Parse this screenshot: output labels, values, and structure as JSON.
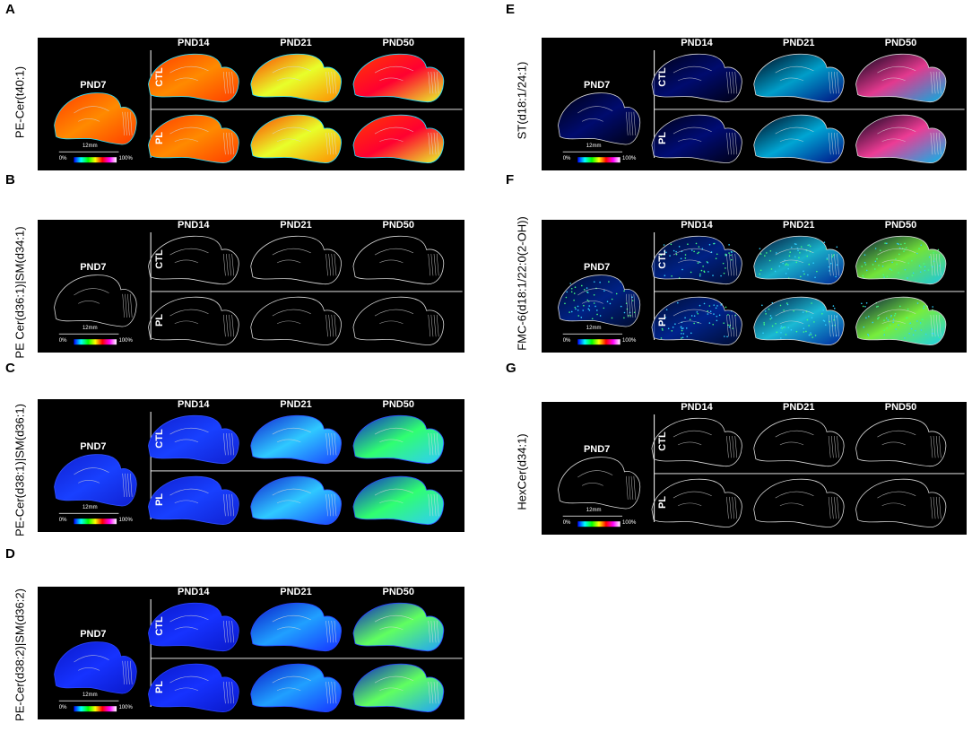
{
  "panels": [
    {
      "letter": "A",
      "ylabel": "PE-Cer(t40:1)",
      "scheme": "hot",
      "pnd7": "PND7",
      "cols": [
        "PND14",
        "PND21",
        "PND50"
      ],
      "rows": [
        "CTL",
        "PL"
      ],
      "scale": "12mm",
      "cb_min": "0%",
      "cb_max": "100%"
    },
    {
      "letter": "B",
      "ylabel": "PE Cer(d36:1)|SM(d34:1)",
      "scheme": "outline",
      "pnd7": "PND7",
      "cols": [
        "PND14",
        "PND21",
        "PND50"
      ],
      "rows": [
        "CTL",
        "PL"
      ],
      "scale": "12mm",
      "cb_min": "0%",
      "cb_max": "100%"
    },
    {
      "letter": "C",
      "ylabel": "PE-Cer(d38:1)|SM(d36:1)",
      "scheme": "blue",
      "pnd7": "PND7",
      "cols": [
        "PND14",
        "PND21",
        "PND50"
      ],
      "rows": [
        "CTL",
        "PL"
      ],
      "scale": "12mm",
      "cb_min": "0%",
      "cb_max": "100%"
    },
    {
      "letter": "D",
      "ylabel": "PE-Cer(d38:2)|SM(d36:2)",
      "scheme": "blue2",
      "pnd7": "PND7",
      "cols": [
        "PND14",
        "PND21",
        "PND50"
      ],
      "rows": [
        "CTL",
        "PL"
      ],
      "scale": "12mm",
      "cb_min": "0%",
      "cb_max": "100%"
    },
    {
      "letter": "E",
      "ylabel": "ST(d18:1/24:1)",
      "scheme": "st",
      "pnd7": "PND7",
      "cols": [
        "PND14",
        "PND21",
        "PND50"
      ],
      "rows": [
        "CTL",
        "PL"
      ],
      "scale": "12mm",
      "cb_min": "0%",
      "cb_max": "100%"
    },
    {
      "letter": "F",
      "ylabel": "FMC-6(d18:1/22:0(2-OH))",
      "scheme": "speckle",
      "pnd7": "PND7",
      "cols": [
        "PND14",
        "PND21",
        "PND50"
      ],
      "rows": [
        "CTL",
        "PL"
      ],
      "scale": "12mm",
      "cb_min": "0%",
      "cb_max": "100%"
    },
    {
      "letter": "G",
      "ylabel": "HexCer(d34:1)",
      "scheme": "outline",
      "pnd7": "PND7",
      "cols": [
        "PND14",
        "PND21",
        "PND50"
      ],
      "rows": [
        "CTL",
        "PL"
      ],
      "scale": "12mm",
      "cb_min": "0%",
      "cb_max": "100%"
    }
  ],
  "colors": {
    "background": "#000000",
    "outline": "#d8d8d8"
  }
}
